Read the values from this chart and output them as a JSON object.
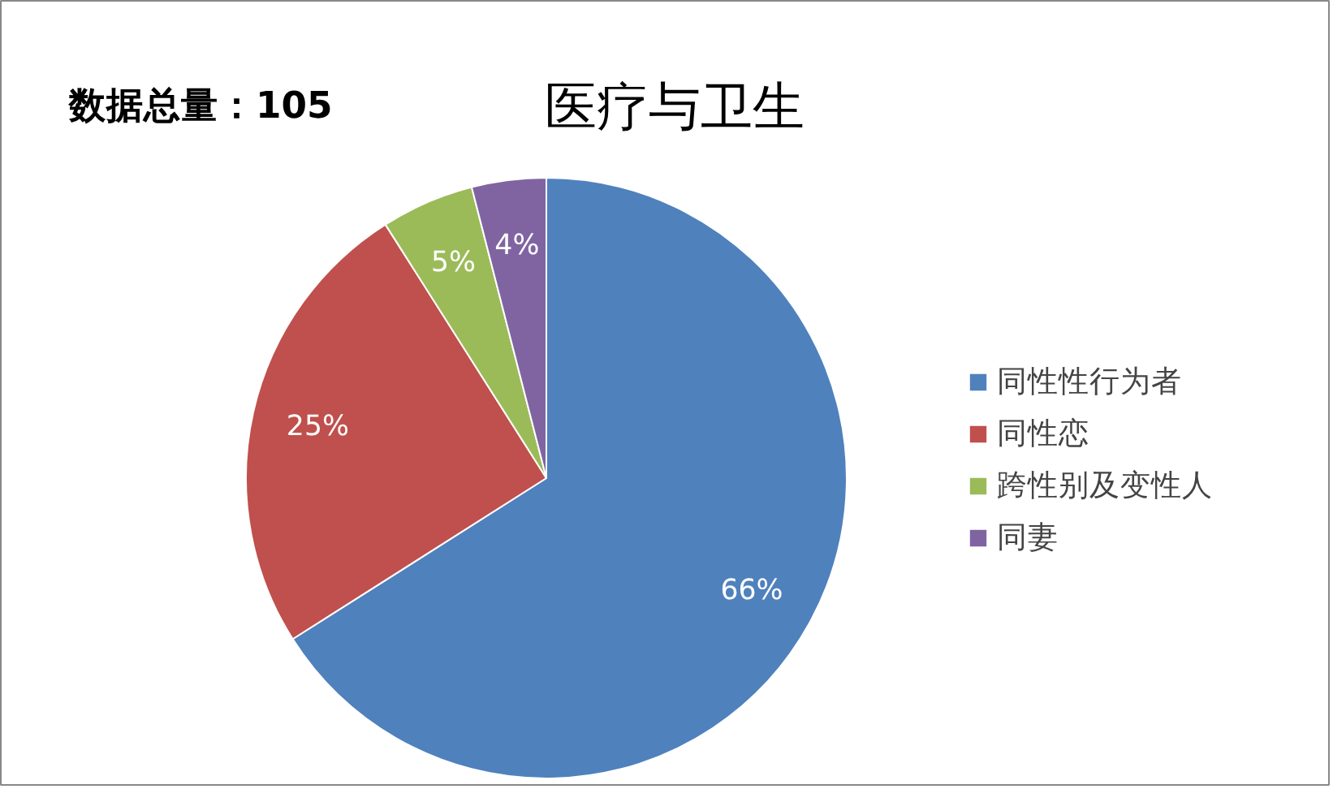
{
  "chart_data": {
    "type": "pie",
    "title": "医疗与卫生",
    "annotations": [
      "数据总量：105"
    ],
    "categories": [
      "同性性行为者",
      "同性恋",
      "跨性别及变性人",
      "同妻"
    ],
    "values": [
      66,
      25,
      5,
      4
    ],
    "colors": [
      "#4f81bd",
      "#c0504d",
      "#9bbb59",
      "#8064a2"
    ],
    "value_labels": [
      "66%",
      "25%",
      "5%",
      "4%"
    ],
    "legend": "right"
  }
}
